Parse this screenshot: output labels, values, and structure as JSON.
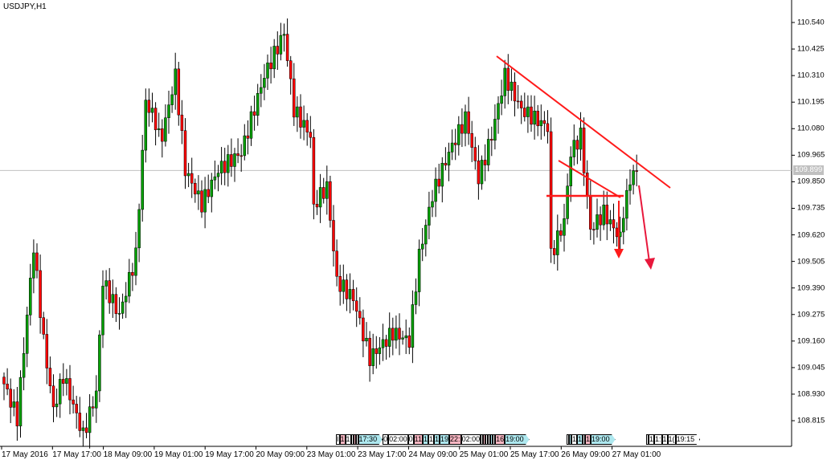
{
  "window": {
    "title": "USDJPY,H1"
  },
  "colors": {
    "bull": "#008000",
    "bear": "#ff0000",
    "body_bull": "#00a000",
    "wick": "#000000",
    "annotation": "#ff1a1a",
    "arrow": "#e8183c",
    "bid_line": "#c0c0c0"
  },
  "chart_data": {
    "type": "candlestick",
    "symbol": "USDJPY",
    "timeframe": "H1",
    "ylim": [
      108.75,
      110.62
    ],
    "y_ticks": [
      "110.540",
      "110.425",
      "110.310",
      "110.195",
      "110.080",
      "109.965",
      "109.850",
      "109.735",
      "109.620",
      "109.505",
      "109.390",
      "109.275",
      "109.160",
      "109.045",
      "108.930",
      "108.815"
    ],
    "x_ticks": [
      "17 May 2016",
      "17 May 17:00",
      "18 May 09:00",
      "19 May 01:00",
      "19 May 17:00",
      "20 May 09:00",
      "23 May 01:00",
      "23 May 17:00",
      "24 May 09:00",
      "25 May 01:00",
      "25 May 17:00",
      "26 May 09:00",
      "27 May 01:00"
    ],
    "bid": "109.899",
    "close_path": [
      [
        0,
        108.974
      ],
      [
        4,
        108.826
      ],
      [
        9,
        109.568
      ],
      [
        12,
        109.16
      ],
      [
        15,
        108.863
      ],
      [
        18,
        109.011
      ],
      [
        24,
        108.752
      ],
      [
        28,
        108.937
      ],
      [
        30,
        109.42
      ],
      [
        35,
        109.271
      ],
      [
        40,
        109.531
      ],
      [
        43,
        110.199
      ],
      [
        48,
        110.05
      ],
      [
        52,
        110.31
      ],
      [
        55,
        109.902
      ],
      [
        60,
        109.753
      ],
      [
        65,
        109.902
      ],
      [
        72,
        109.976
      ],
      [
        79,
        110.31
      ],
      [
        85,
        110.495
      ],
      [
        88,
        110.162
      ],
      [
        93,
        110.05
      ],
      [
        94,
        109.753
      ],
      [
        98,
        109.828
      ],
      [
        101,
        109.42
      ],
      [
        106,
        109.345
      ],
      [
        111,
        109.086
      ],
      [
        118,
        109.197
      ],
      [
        123,
        109.16
      ],
      [
        126,
        109.531
      ],
      [
        130,
        109.791
      ],
      [
        135,
        109.976
      ],
      [
        140,
        110.124
      ],
      [
        144,
        109.865
      ],
      [
        148,
        110.05
      ],
      [
        152,
        110.31
      ],
      [
        157,
        110.162
      ],
      [
        165,
        110.087
      ],
      [
        166,
        109.531
      ],
      [
        170,
        109.679
      ],
      [
        172,
        109.976
      ],
      [
        175,
        110.05
      ],
      [
        178,
        109.642
      ],
      [
        182,
        109.716
      ],
      [
        187,
        109.605
      ],
      [
        190,
        109.865
      ],
      [
        192,
        109.899
      ]
    ]
  },
  "time_tags": [
    {
      "t": "I",
      "k": ""
    },
    {
      "t": "1",
      "k": "p"
    },
    {
      "t": "1",
      "k": ""
    },
    {
      "t": "",
      "k": ""
    },
    {
      "t": "",
      "k": "p"
    },
    {
      "t": "",
      "k": ""
    },
    {
      "t": "17:30",
      "k": "c arrow"
    },
    {
      "t": "0",
      "k": ""
    },
    {
      "t": "02:00",
      "k": ""
    },
    {
      "t": "0",
      "k": ""
    },
    {
      "t": "11",
      "k": "p"
    },
    {
      "t": "1",
      "k": "c"
    },
    {
      "t": "1",
      "k": ""
    },
    {
      "t": "1",
      "k": "c"
    },
    {
      "t": "19",
      "k": "c"
    },
    {
      "t": "22:",
      "k": "p"
    },
    {
      "t": "02:00",
      "k": ""
    },
    {
      "t": "",
      "k": ""
    },
    {
      "t": "",
      "k": "p"
    },
    {
      "t": "",
      "k": ""
    },
    {
      "t": "",
      "k": ""
    },
    {
      "t": "",
      "k": "c"
    },
    {
      "t": "",
      "k": ""
    },
    {
      "t": "16",
      "k": "p"
    },
    {
      "t": "19:00",
      "k": "c arrow"
    }
  ],
  "time_tags2": [
    {
      "t": "",
      "k": ""
    },
    {
      "t": "",
      "k": "c"
    },
    {
      "t": "1",
      "k": ""
    },
    {
      "t": "1",
      "k": "c"
    },
    {
      "t": "",
      "k": ""
    },
    {
      "t": "1",
      "k": "p"
    },
    {
      "t": "19:00",
      "k": "c arrow"
    }
  ],
  "time_tags3": [
    {
      "t": "",
      "k": ""
    },
    {
      "t": "1",
      "k": ""
    },
    {
      "t": "1:",
      "k": ""
    },
    {
      "t": "1",
      "k": ""
    },
    {
      "t": "1(",
      "k": ""
    },
    {
      "t": "19:15",
      "k": "arrow"
    }
  ]
}
